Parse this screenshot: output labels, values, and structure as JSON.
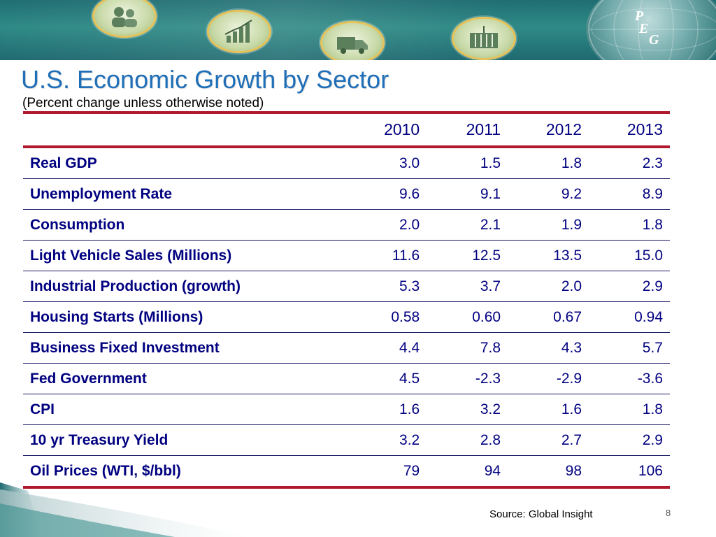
{
  "header": {
    "icons": [
      "people-icon",
      "growth-chart-icon",
      "truck-icon",
      "shipping-container-icon"
    ],
    "logo_letters": [
      "P",
      "E",
      "G"
    ]
  },
  "slide": {
    "title": "U.S. Economic Growth by Sector",
    "subtitle": "(Percent change unless otherwise noted)",
    "source": "Source: Global Insight",
    "page_number": "8"
  },
  "table": {
    "columns": [
      "",
      "2010",
      "2011",
      "2012",
      "2013"
    ],
    "rows": [
      {
        "label": "Real GDP",
        "values": [
          "3.0",
          "1.5",
          "1.8",
          "2.3"
        ]
      },
      {
        "label": "Unemployment Rate",
        "values": [
          "9.6",
          "9.1",
          "9.2",
          "8.9"
        ]
      },
      {
        "label": "Consumption",
        "values": [
          "2.0",
          "2.1",
          "1.9",
          "1.8"
        ]
      },
      {
        "label": "Light Vehicle Sales (Millions)",
        "values": [
          "11.6",
          "12.5",
          "13.5",
          "15.0"
        ]
      },
      {
        "label": "Industrial Production (growth)",
        "values": [
          "5.3",
          "3.7",
          "2.0",
          "2.9"
        ]
      },
      {
        "label": "Housing Starts (Millions)",
        "values": [
          "0.58",
          "0.60",
          "0.67",
          "0.94"
        ]
      },
      {
        "label": "Business Fixed Investment",
        "values": [
          "4.4",
          "7.8",
          "4.3",
          "5.7"
        ]
      },
      {
        "label": "Fed Government",
        "values": [
          "4.5",
          "-2.3",
          "-2.9",
          "-3.6"
        ]
      },
      {
        "label": "CPI",
        "values": [
          "1.6",
          "3.2",
          "1.6",
          "1.8"
        ]
      },
      {
        "label": "10 yr Treasury Yield",
        "values": [
          "3.2",
          "2.8",
          "2.7",
          "2.9"
        ]
      },
      {
        "label": "Oil Prices (WTI, $/bbl)",
        "values": [
          "79",
          "94",
          "98",
          "106"
        ]
      }
    ]
  },
  "colors": {
    "title": "#1f6fb8",
    "table_text": "#000080",
    "rule": "#b0182e",
    "banner": "#2f8a86"
  }
}
